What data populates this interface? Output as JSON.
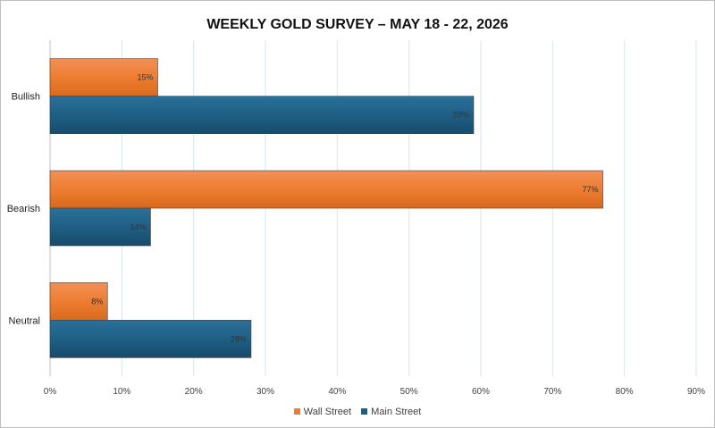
{
  "chart_data": {
    "type": "bar",
    "orientation": "horizontal",
    "title": "WEEKLY GOLD SURVEY – MAY 18 - 22, 2026",
    "categories": [
      "Bullish",
      "Bearish",
      "Neutral"
    ],
    "series": [
      {
        "name": "Wall Street",
        "values": [
          15,
          77,
          8
        ],
        "labels": [
          "15%",
          "77%",
          "8%"
        ],
        "color": "#ed7d31"
      },
      {
        "name": "Main Street",
        "values": [
          59,
          14,
          28
        ],
        "labels": [
          "59%",
          "14%",
          "28%"
        ],
        "color": "#1f5f85"
      }
    ],
    "x_ticks": [
      0,
      10,
      20,
      30,
      40,
      50,
      60,
      70,
      80,
      90
    ],
    "x_tick_labels": [
      "0%",
      "10%",
      "20%",
      "30%",
      "40%",
      "50%",
      "60%",
      "70%",
      "80%",
      "90%"
    ],
    "xlim": [
      0,
      90
    ],
    "xlabel": "",
    "ylabel": "",
    "grid": true,
    "legend_position": "bottom"
  }
}
